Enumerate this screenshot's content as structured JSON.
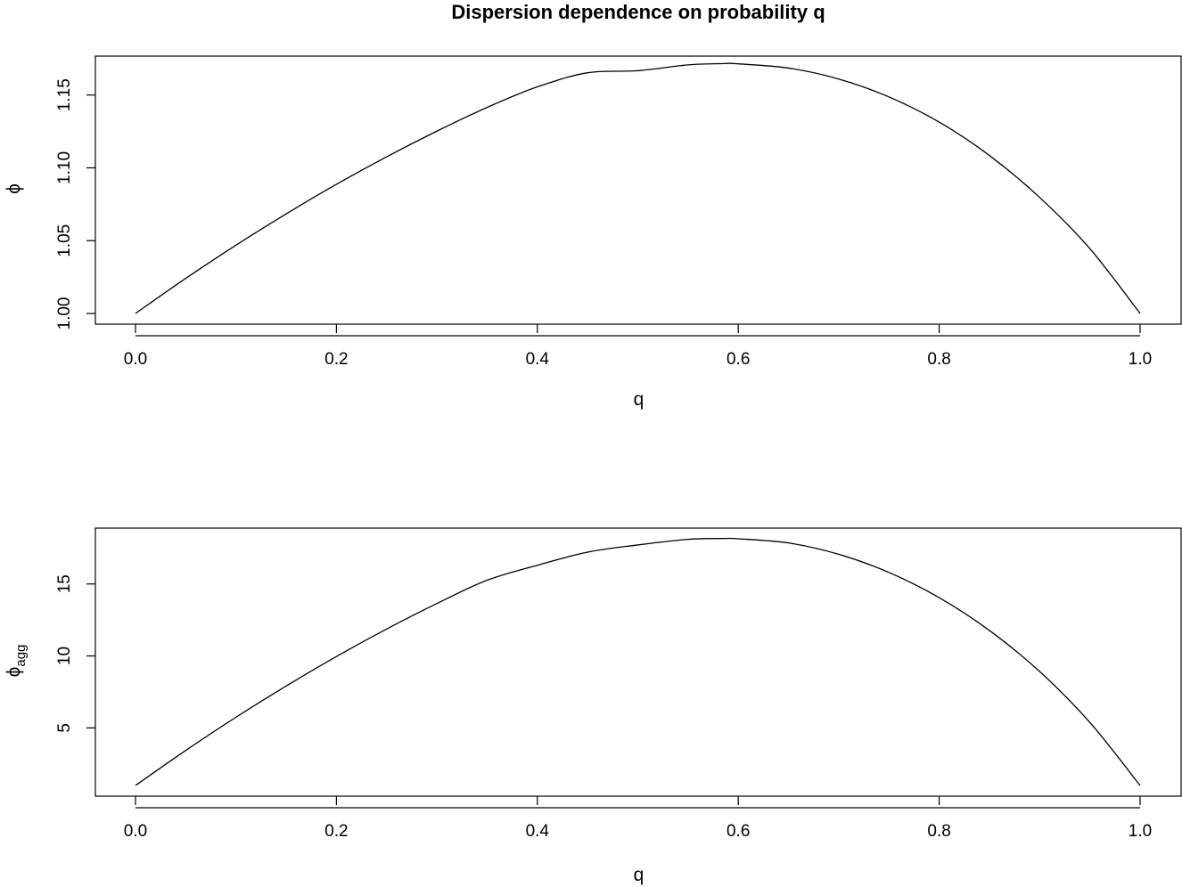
{
  "title": "Dispersion dependence on probability q",
  "chart_data": [
    {
      "type": "line",
      "xlabel": "q",
      "ylabel": "ϕ",
      "ylabel_sub": "",
      "xlim": [
        0,
        1
      ],
      "ylim": [
        1.0,
        1.17
      ],
      "x_ticks": [
        0.0,
        0.2,
        0.4,
        0.6,
        0.8,
        1.0
      ],
      "x_tick_labels": [
        "0.0",
        "0.2",
        "0.4",
        "0.6",
        "0.8",
        "1.0"
      ],
      "y_ticks": [
        1.0,
        1.05,
        1.1,
        1.15
      ],
      "y_tick_labels": [
        "1.00",
        "1.05",
        "1.10",
        "1.15"
      ],
      "grid": false,
      "series": [
        {
          "x": [
            0.0,
            0.05,
            0.1,
            0.15,
            0.2,
            0.25,
            0.3,
            0.35,
            0.4,
            0.45,
            0.5,
            0.55,
            0.586,
            0.6,
            0.65,
            0.7,
            0.75,
            0.8,
            0.85,
            0.9,
            0.95,
            1.0
          ],
          "y": [
            1.0,
            1.0241,
            1.0469,
            1.0684,
            1.0887,
            1.1076,
            1.1252,
            1.1415,
            1.1556,
            1.1653,
            1.1667,
            1.1707,
            1.1716,
            1.1714,
            1.1685,
            1.161,
            1.1487,
            1.1314,
            1.1085,
            1.0797,
            1.0445,
            1.0
          ]
        }
      ]
    },
    {
      "type": "line",
      "xlabel": "q",
      "ylabel": "ϕ",
      "ylabel_sub": "agg",
      "xlim": [
        0,
        1
      ],
      "ylim": [
        1.0,
        18.2
      ],
      "x_ticks": [
        0.0,
        0.2,
        0.4,
        0.6,
        0.8,
        1.0
      ],
      "x_tick_labels": [
        "0.0",
        "0.2",
        "0.4",
        "0.6",
        "0.8",
        "1.0"
      ],
      "y_ticks": [
        5,
        10,
        15
      ],
      "y_tick_labels": [
        "5",
        "10",
        "15"
      ],
      "grid": false,
      "series": [
        {
          "x": [
            0.0,
            0.05,
            0.1,
            0.15,
            0.2,
            0.25,
            0.3,
            0.35,
            0.4,
            0.45,
            0.5,
            0.55,
            0.586,
            0.6,
            0.65,
            0.7,
            0.75,
            0.8,
            0.85,
            0.9,
            0.95,
            1.0
          ],
          "y": [
            1.0,
            3.43,
            5.74,
            7.91,
            9.96,
            11.87,
            13.64,
            15.26,
            16.3,
            17.21,
            17.71,
            18.1,
            18.16,
            18.14,
            17.85,
            17.06,
            15.8,
            14.05,
            11.77,
            8.92,
            5.38,
            1.0
          ]
        }
      ]
    }
  ]
}
